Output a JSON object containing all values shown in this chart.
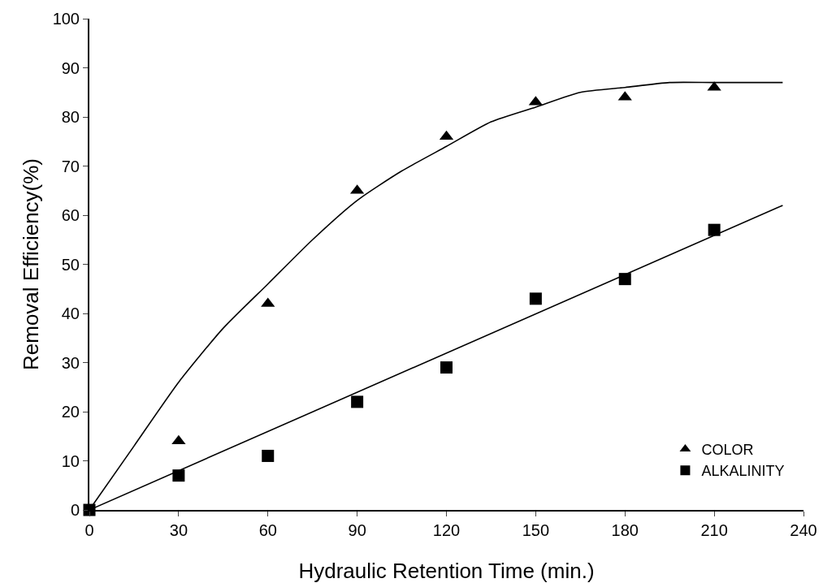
{
  "chart_data": {
    "type": "scatter",
    "xlabel": "Hydraulic Retention Time (min.)",
    "ylabel": "Removal Efficiency(%)",
    "xlim": [
      0,
      240
    ],
    "xticks": [
      0,
      30,
      60,
      90,
      120,
      150,
      180,
      210,
      240
    ],
    "ylim": [
      0,
      100
    ],
    "yticks": [
      0,
      10,
      20,
      30,
      40,
      50,
      60,
      70,
      80,
      90,
      100
    ],
    "grid": false,
    "legend": "bottom right",
    "series": [
      {
        "name": "COLOR",
        "marker": "triangle",
        "color": "#000000",
        "x": [
          30,
          60,
          90,
          120,
          150,
          180,
          210
        ],
        "values": [
          14,
          42,
          65,
          76,
          83,
          84,
          86
        ]
      },
      {
        "name": "ALKALINITY",
        "marker": "square",
        "color": "#000000",
        "x": [
          0,
          30,
          60,
          90,
          120,
          150,
          180,
          210
        ],
        "values": [
          0,
          7,
          11,
          22,
          29,
          43,
          47,
          57
        ]
      },
      {
        "type": "line",
        "marker": "none",
        "line_style": "solid",
        "color": "#000000",
        "x": [
          0,
          15,
          30,
          45,
          60,
          75,
          90,
          105,
          120,
          135,
          150,
          165,
          180,
          195,
          210,
          233
        ],
        "values": [
          0,
          13,
          26,
          37,
          46,
          55,
          63,
          69,
          74,
          79,
          82,
          85,
          86,
          87,
          87,
          87
        ]
      },
      {
        "type": "line",
        "marker": "none",
        "line_style": "solid",
        "color": "#000000",
        "x": [
          0,
          233
        ],
        "values": [
          0,
          62
        ]
      }
    ]
  }
}
